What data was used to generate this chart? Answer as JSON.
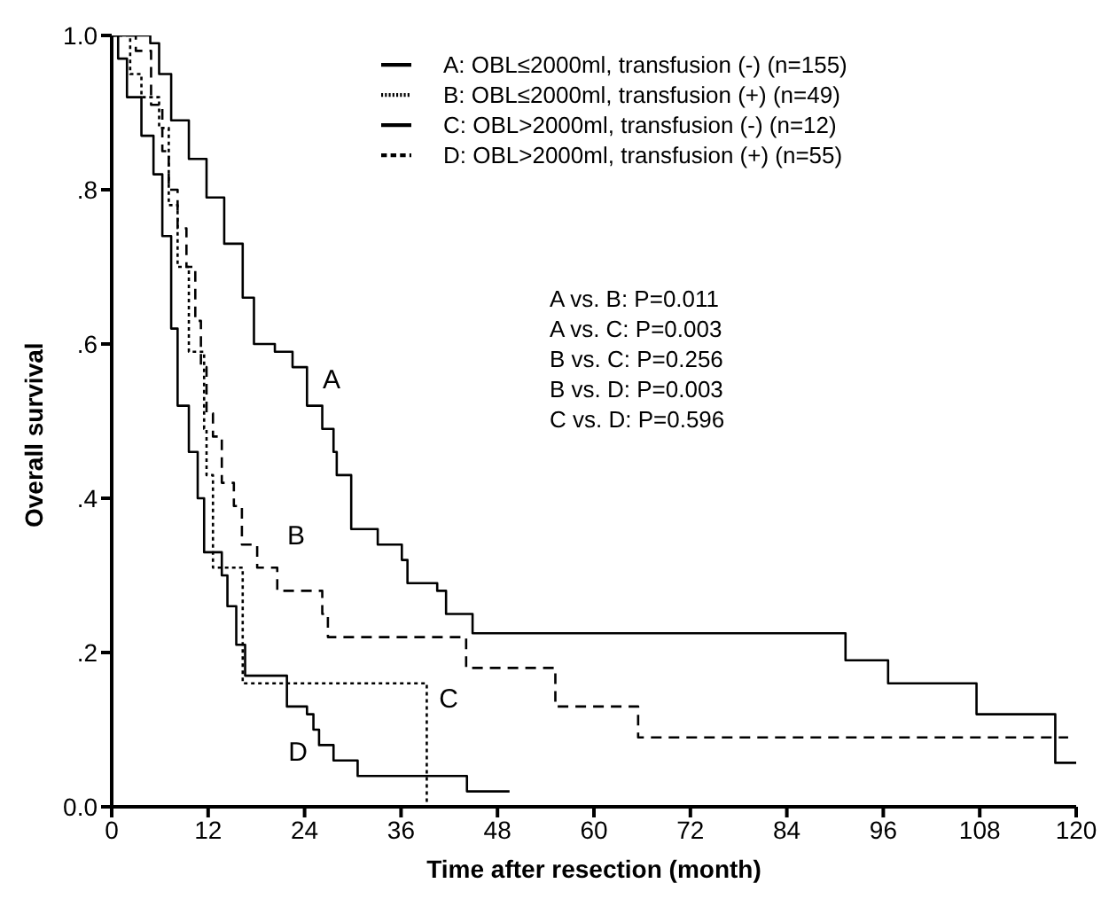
{
  "chart_data": {
    "type": "step",
    "xlabel": "Time after resection (month)",
    "ylabel": "Overall survival",
    "xlim": [
      0,
      120
    ],
    "ylim": [
      0,
      1
    ],
    "xticks": [
      0,
      12,
      24,
      36,
      48,
      60,
      72,
      84,
      96,
      108,
      120
    ],
    "yticks": [
      {
        "value": 0,
        "label": "0.0"
      },
      {
        "value": 0.2,
        "label": ".2"
      },
      {
        "value": 0.4,
        "label": ".4"
      },
      {
        "value": 0.6,
        "label": ".6"
      },
      {
        "value": 0.8,
        "label": ".8"
      },
      {
        "value": 1,
        "label": "1.0"
      }
    ],
    "legend": "top right",
    "series": [
      {
        "name": "A: OBL≤2000ml, transfusion (-) (n=155)",
        "color": "#000000",
        "line_style": "solid",
        "x": [
          0,
          4.8,
          5.9,
          7.4,
          9.6,
          11.8,
          14.0,
          16.3,
          17.7,
          20.3,
          22.5,
          24.3,
          26.2,
          27.6,
          28.0,
          29.8,
          33.1,
          36.1,
          36.8,
          40.5,
          41.6,
          44.9,
          91.3,
          96.6,
          107.6,
          117.4,
          120
        ],
        "values": [
          1,
          0.99,
          0.95,
          0.89,
          0.84,
          0.79,
          0.73,
          0.66,
          0.6,
          0.59,
          0.57,
          0.52,
          0.49,
          0.46,
          0.43,
          0.36,
          0.34,
          0.32,
          0.29,
          0.28,
          0.25,
          0.225,
          0.19,
          0.16,
          0.12,
          0.057,
          0.057
        ]
      },
      {
        "name": "B: OBL≤2000ml, transfusion (+) (n=49)",
        "color": "#000000",
        "line_style": "dotted",
        "x": [
          0,
          2.3,
          3.7,
          5.9,
          7.1,
          8.2,
          9.6,
          11.5,
          11.8,
          12.6,
          16.3,
          39.2,
          40
        ],
        "values": [
          1,
          0.95,
          0.92,
          0.88,
          0.78,
          0.7,
          0.59,
          0.49,
          0.43,
          0.31,
          0.16,
          0,
          0
        ]
      },
      {
        "name": "C: OBL>2000ml, transfusion (-) (n=12)",
        "color": "#000000",
        "line_style": "solid",
        "x": [
          0,
          0.8,
          1.9,
          3.7,
          5.2,
          6.3,
          7.4,
          8.2,
          9.6,
          10.7,
          11.5,
          13.7,
          14.4,
          15.5,
          16.6,
          21.8,
          24.3,
          25.1,
          25.8,
          27.6,
          30.6,
          44.2,
          49.5
        ],
        "values": [
          1,
          0.97,
          0.92,
          0.87,
          0.82,
          0.74,
          0.62,
          0.52,
          0.46,
          0.4,
          0.33,
          0.3,
          0.26,
          0.21,
          0.17,
          0.13,
          0.12,
          0.1,
          0.08,
          0.06,
          0.04,
          0.02,
          0.02
        ]
      },
      {
        "name": "D: OBL>2000ml, transfusion (+) (n=55)",
        "color": "#000000",
        "line_style": "dashed",
        "x": [
          0,
          3.0,
          4.9,
          6.3,
          7.1,
          8.2,
          9.3,
          10.4,
          11.1,
          11.8,
          12.6,
          13.7,
          15.2,
          16.2,
          18.1,
          20.6,
          26.2,
          26.9,
          44.1,
          55.2,
          65.5,
          119
        ],
        "values": [
          1,
          0.98,
          0.91,
          0.85,
          0.8,
          0.75,
          0.7,
          0.63,
          0.57,
          0.51,
          0.48,
          0.42,
          0.39,
          0.34,
          0.31,
          0.28,
          0.25,
          0.22,
          0.18,
          0.13,
          0.09,
          0.09
        ]
      }
    ],
    "annotations": [
      "A",
      "B",
      "C",
      "D",
      "A vs. B: P=0.011",
      "A vs. C: P=0.003",
      "B vs. C: P=0.256",
      "B vs. D: P=0.003",
      "C vs. D: P=0.596"
    ]
  }
}
